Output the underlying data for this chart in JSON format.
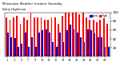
{
  "title": "Milwaukee Weather Outdoor Humidity",
  "subtitle": "Daily High/Low",
  "high_values": [
    88,
    84,
    88,
    93,
    75,
    88,
    84,
    100,
    88,
    88,
    88,
    84,
    84,
    88,
    88,
    75,
    93,
    100,
    100,
    100,
    100,
    95,
    100,
    88,
    84,
    84,
    77,
    84,
    88,
    75
  ],
  "low_values": [
    55,
    44,
    42,
    22,
    30,
    55,
    22,
    44,
    22,
    55,
    60,
    62,
    55,
    33,
    22,
    55,
    33,
    60,
    72,
    62,
    55,
    44,
    33,
    62,
    60,
    52,
    44,
    44,
    22,
    22
  ],
  "high_color": "#ff0000",
  "low_color": "#0000cc",
  "bg_color": "#ffffff",
  "grid_color": "#cccccc",
  "ylim": [
    0,
    100
  ],
  "yticks": [
    20,
    40,
    60,
    80,
    100
  ],
  "legend_high": "High",
  "legend_low": "Low",
  "xtick_step": 2
}
